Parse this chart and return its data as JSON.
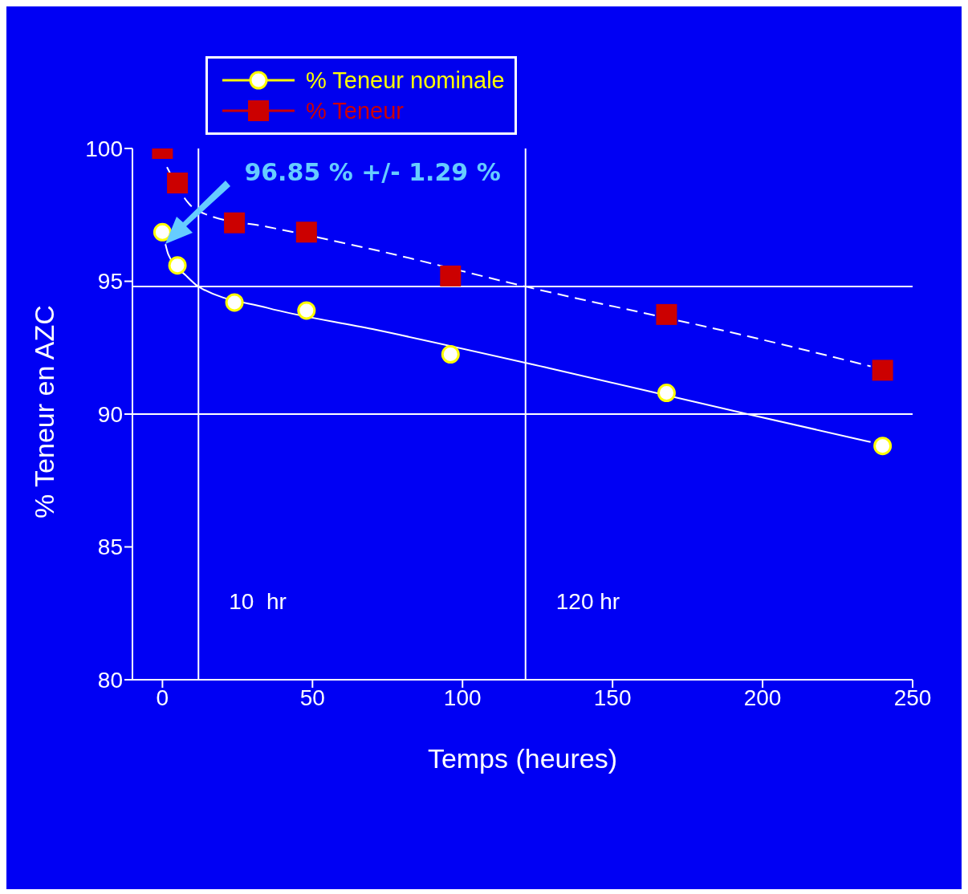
{
  "chart_data": {
    "type": "scatter",
    "xlabel": "Temps (heures)",
    "ylabel": "% Teneur en AZC",
    "xlim": [
      -10,
      250
    ],
    "xticks": [
      0,
      50,
      100,
      150,
      200,
      250
    ],
    "ylim": [
      80,
      100
    ],
    "yticks": [
      80,
      85,
      90,
      95,
      100
    ],
    "legend": "top left",
    "series": [
      {
        "type": "line",
        "color": "#ffffff",
        "marker": "none",
        "line_style": "solid",
        "x": [
          1,
          2,
          8,
          12,
          35,
          70,
          130,
          195,
          236
        ],
        "values": [
          96.4,
          96,
          95.2,
          94.8,
          94,
          93.2,
          91.7,
          90,
          88.95
        ]
      },
      {
        "type": "line",
        "color": "#ffffff",
        "marker": "none",
        "line_style": "dashed",
        "x": [
          1.5,
          9,
          15,
          35,
          70,
          121,
          200,
          236
        ],
        "values": [
          99.3,
          97.9,
          97.5,
          97.05,
          96.2,
          94.8,
          92.8,
          91.8
        ]
      },
      {
        "name": "% Teneur nominale",
        "color": "#ffff00",
        "marker": "circle",
        "x": [
          0,
          5,
          24,
          48,
          96,
          168,
          240
        ],
        "values": [
          96.85,
          95.6,
          94.2,
          93.9,
          92.25,
          90.8,
          88.8
        ]
      },
      {
        "name": "% Teneur",
        "color": "#cc0000",
        "marker": "square",
        "x": [
          0,
          5,
          24,
          48,
          96,
          168,
          240
        ],
        "values": [
          100,
          98.7,
          97.2,
          96.85,
          95.2,
          93.75,
          91.65
        ]
      }
    ],
    "ref_lines": [
      {
        "axis": "y",
        "value": 94.8,
        "color": "#ffffff"
      },
      {
        "axis": "y",
        "value": 90,
        "color": "#ffffff"
      },
      {
        "axis": "x",
        "value": 12,
        "label": "10  hr",
        "color": "#ffffff"
      },
      {
        "axis": "x",
        "value": 121,
        "label": "120 hr",
        "color": "#ffffff"
      }
    ],
    "annotations": [
      "96.85 % +/- 1.29 %"
    ]
  }
}
